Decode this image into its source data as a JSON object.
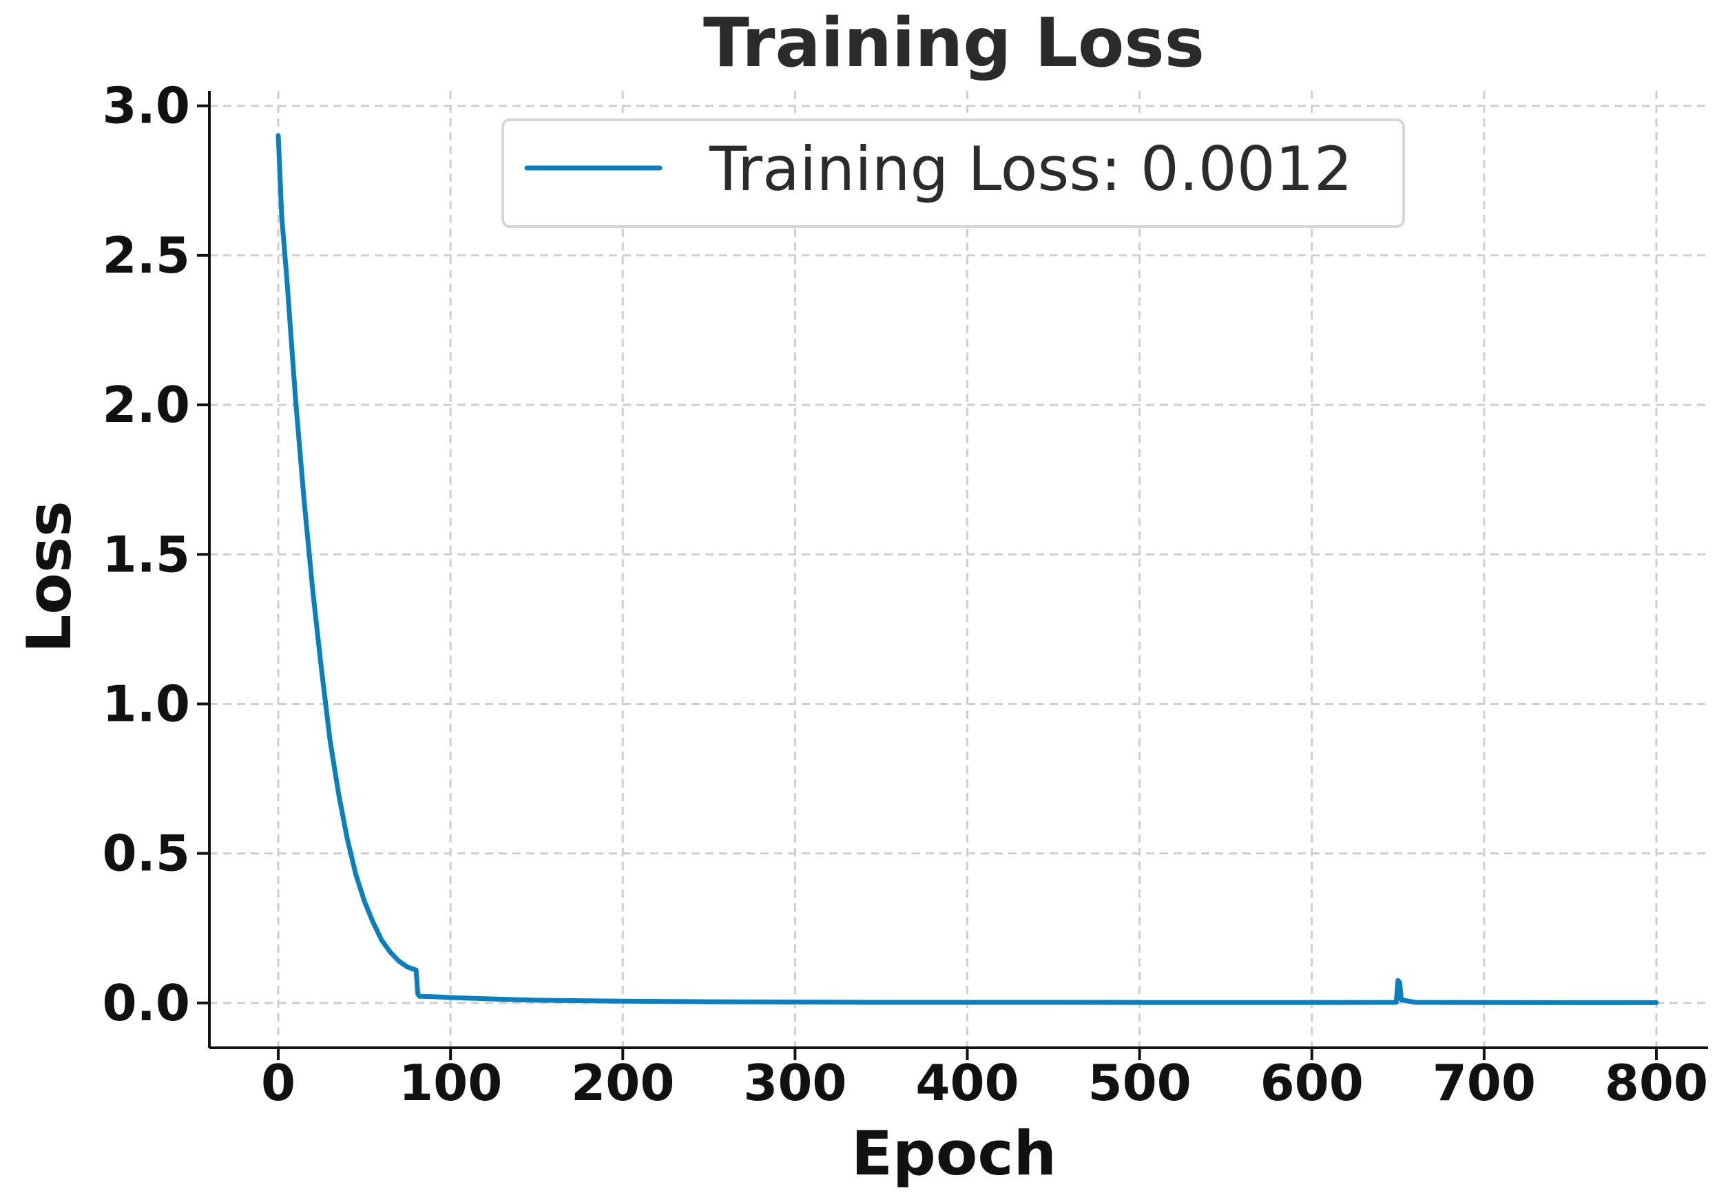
{
  "chart_data": {
    "type": "line",
    "title": "Training Loss",
    "xlabel": "Epoch",
    "ylabel": "Loss",
    "xlim": [
      -40,
      830
    ],
    "ylim": [
      -0.15,
      3.05
    ],
    "xticks": [
      0,
      100,
      200,
      300,
      400,
      500,
      600,
      700,
      800
    ],
    "yticks": [
      0.0,
      0.5,
      1.0,
      1.5,
      2.0,
      2.5,
      3.0
    ],
    "xtick_labels": [
      "0",
      "100",
      "200",
      "300",
      "400",
      "500",
      "600",
      "700",
      "800"
    ],
    "ytick_labels": [
      "0.0",
      "0.5",
      "1.0",
      "1.5",
      "2.0",
      "2.5",
      "3.0"
    ],
    "grid": true,
    "legend": {
      "placement": "top-center",
      "entries": [
        "Training Loss: 0.0012"
      ]
    },
    "series": [
      {
        "name": "Training Loss: 0.0012",
        "color": "#0a7fbf",
        "x": [
          0,
          2,
          5,
          10,
          15,
          20,
          25,
          30,
          35,
          40,
          45,
          50,
          55,
          60,
          65,
          70,
          75,
          80,
          81,
          82,
          90,
          100,
          120,
          150,
          200,
          250,
          300,
          350,
          400,
          450,
          500,
          550,
          600,
          649,
          650,
          651,
          652,
          660,
          700,
          750,
          800
        ],
        "y": [
          2.9,
          2.63,
          2.42,
          2.02,
          1.68,
          1.38,
          1.12,
          0.88,
          0.7,
          0.55,
          0.43,
          0.34,
          0.27,
          0.21,
          0.17,
          0.14,
          0.12,
          0.11,
          0.03,
          0.022,
          0.021,
          0.018,
          0.014,
          0.009,
          0.006,
          0.004,
          0.003,
          0.002,
          0.002,
          0.002,
          0.0015,
          0.0015,
          0.0014,
          0.002,
          0.075,
          0.068,
          0.01,
          0.002,
          0.0013,
          0.0012,
          0.0012
        ]
      }
    ]
  }
}
